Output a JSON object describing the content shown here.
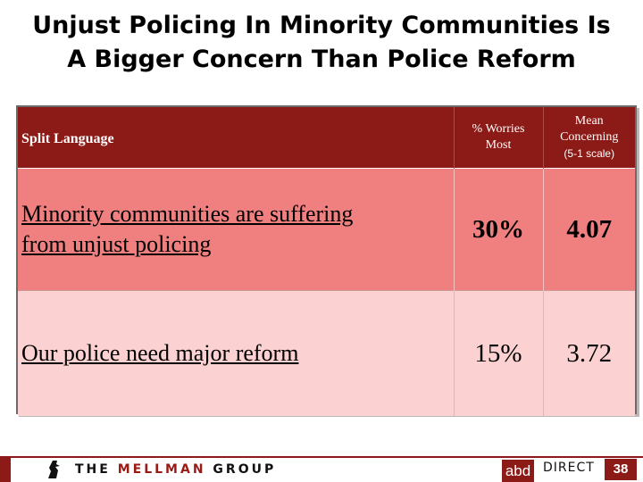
{
  "title": {
    "line1": "Unjust Policing In Minority Communities Is",
    "line2": "A Bigger Concern Than Police Reform"
  },
  "table": {
    "headers": {
      "col1": "Split Language",
      "col2_line1": "% Worries",
      "col2_line2": "Most",
      "col3_line1": "Mean",
      "col3_line2": "Concerning",
      "col3_line3": "(5-1 scale)"
    },
    "rows": [
      {
        "text_line1": "Minority communities are suffering",
        "text_line2": "from unjust policing",
        "pct": "30%",
        "mean": "4.07"
      },
      {
        "text_line1": "Our police need major reform",
        "pct": "15%",
        "mean": "3.72"
      }
    ]
  },
  "footer": {
    "logo_the": "THE",
    "logo_mellman": "MELLMAN",
    "logo_group": "GROUP",
    "abd": "abd",
    "direct": "DIRECT",
    "page_number": "38"
  },
  "colors": {
    "header_bg": "#8c1a16",
    "row1_bg": "#f07f7f",
    "row2_bg": "#fcd1d1"
  }
}
